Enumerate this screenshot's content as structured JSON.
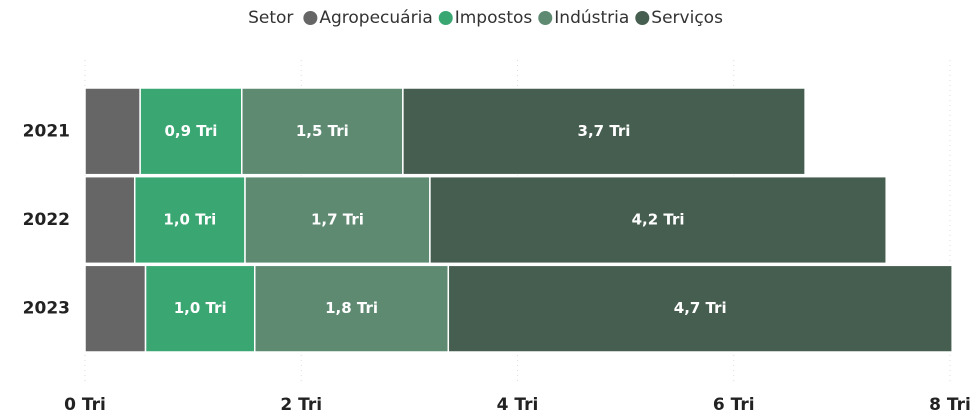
{
  "chart_data": {
    "type": "stacked_barh",
    "legend_title": "Setor",
    "categories": [
      "2021",
      "2022",
      "2023"
    ],
    "series": [
      {
        "name": "Agropecuária",
        "color": "#666666",
        "values": [
          0.51,
          0.46,
          0.56
        ]
      },
      {
        "name": "Impostos",
        "color": "#3aa672",
        "values": [
          0.94,
          1.02,
          1.01
        ],
        "value_labels": [
          "0,9 Tri",
          "1,0 Tri",
          "1,0 Tri"
        ]
      },
      {
        "name": "Indústria",
        "color": "#5e8a72",
        "values": [
          1.49,
          1.71,
          1.79
        ],
        "value_labels": [
          "1,5 Tri",
          "1,7 Tri",
          "1,8 Tri"
        ]
      },
      {
        "name": "Serviços",
        "color": "#455e4f",
        "values": [
          3.72,
          4.22,
          4.66
        ],
        "value_labels": [
          "3,7 Tri",
          "4,2 Tri",
          "4,7 Tri"
        ]
      }
    ],
    "xlim": [
      0,
      8
    ],
    "xticks": [
      {
        "value": 0,
        "label": "0 Tri"
      },
      {
        "value": 2,
        "label": "2 Tri"
      },
      {
        "value": 4,
        "label": "4 Tri"
      },
      {
        "value": 6,
        "label": "6 Tri"
      },
      {
        "value": 8,
        "label": "8 Tri"
      }
    ],
    "grid": true,
    "legend": "top"
  }
}
